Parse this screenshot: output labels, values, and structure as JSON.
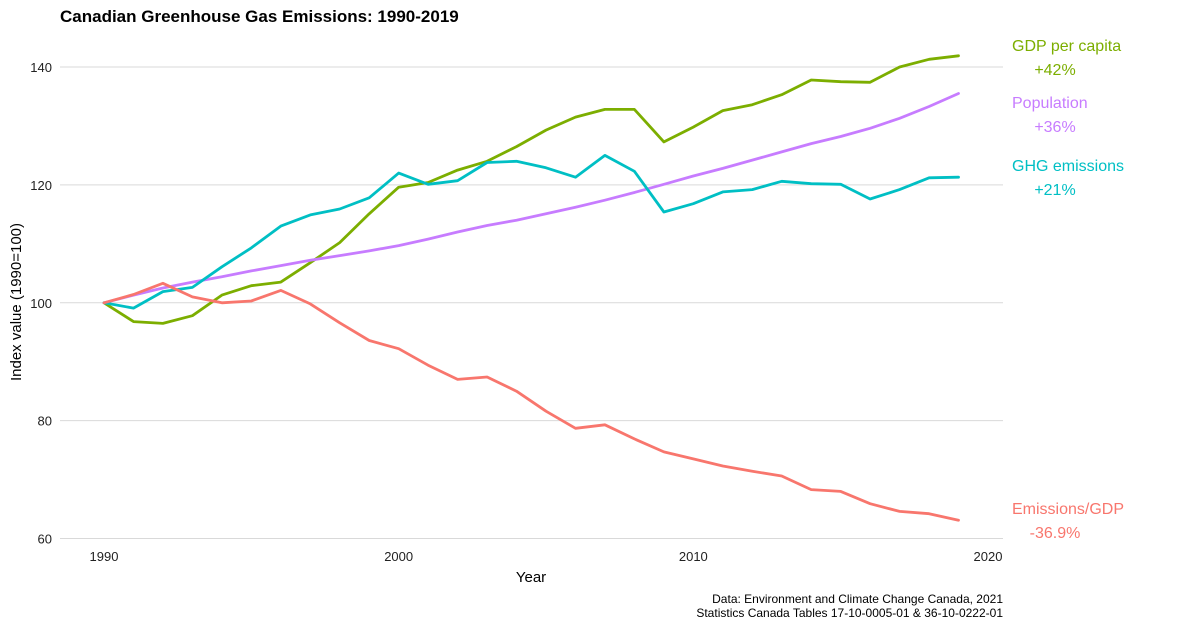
{
  "chart_data": {
    "type": "line",
    "title": "Canadian Greenhouse Gas Emissions: 1990-2019",
    "xlabel": "Year",
    "ylabel": "Index value (1990=100)",
    "xlim": [
      1990,
      2020
    ],
    "ylim": [
      60,
      144
    ],
    "x_ticks": [
      1990,
      2000,
      2010,
      2020
    ],
    "y_ticks": [
      60,
      80,
      100,
      120,
      140
    ],
    "grid": true,
    "legend": "direct-labels-right",
    "x": [
      1990,
      1991,
      1992,
      1993,
      1994,
      1995,
      1996,
      1997,
      1998,
      1999,
      2000,
      2001,
      2002,
      2003,
      2004,
      2005,
      2006,
      2007,
      2008,
      2009,
      2010,
      2011,
      2012,
      2013,
      2014,
      2015,
      2016,
      2017,
      2018,
      2019
    ],
    "series": [
      {
        "name": "GDP per capita",
        "change": "+42%",
        "color": "#7CAE00",
        "values": [
          100,
          96.8,
          96.5,
          97.8,
          101.3,
          102.9,
          103.5,
          106.8,
          110.2,
          115.1,
          119.6,
          120.4,
          122.5,
          124.0,
          126.5,
          129.3,
          131.5,
          132.8,
          132.8,
          127.3,
          129.8,
          132.6,
          133.6,
          135.3,
          137.8,
          137.5,
          137.4,
          140.0,
          141.3,
          141.9
        ]
      },
      {
        "name": "Population",
        "change": "+36%",
        "color": "#C77CFF",
        "values": [
          100,
          101.3,
          102.5,
          103.5,
          104.4,
          105.4,
          106.3,
          107.2,
          108.0,
          108.8,
          109.7,
          110.8,
          112.0,
          113.1,
          114.0,
          115.1,
          116.2,
          117.4,
          118.7,
          120.1,
          121.5,
          122.8,
          124.2,
          125.6,
          127.0,
          128.2,
          129.6,
          131.3,
          133.3,
          135.5
        ]
      },
      {
        "name": "GHG emissions",
        "change": "+21%",
        "color": "#00BFC4",
        "values": [
          100,
          99.1,
          101.9,
          102.6,
          106.1,
          109.3,
          113.0,
          114.9,
          115.9,
          117.8,
          122.0,
          120.1,
          120.7,
          123.8,
          124.0,
          122.9,
          121.3,
          125.0,
          122.3,
          115.4,
          116.8,
          118.8,
          119.2,
          120.6,
          120.2,
          120.1,
          117.6,
          119.2,
          121.2,
          121.3
        ]
      },
      {
        "name": "Emissions/GDP",
        "change": "-36.9%",
        "color": "#F8766D",
        "values": [
          100,
          101.4,
          103.3,
          101.0,
          100.0,
          100.3,
          102.1,
          99.8,
          96.6,
          93.6,
          92.2,
          89.4,
          87.0,
          87.4,
          85.0,
          81.6,
          78.7,
          79.3,
          76.9,
          74.7,
          73.5,
          72.3,
          71.4,
          70.6,
          68.3,
          68.0,
          65.9,
          64.6,
          64.2,
          63.1
        ]
      }
    ],
    "caption": [
      "Data: Environment and Climate Change Canada, 2021",
      "Statistics Canada Tables 17-10-0005-01 & 36-10-0222-01"
    ]
  }
}
